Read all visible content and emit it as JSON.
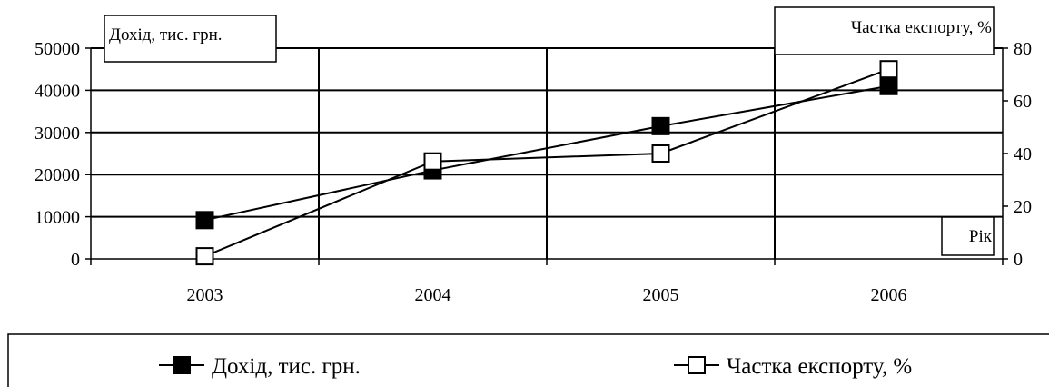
{
  "chart_data": {
    "type": "line",
    "categories": [
      "2003",
      "2004",
      "2005",
      "2006"
    ],
    "x_title": "Рік",
    "y_left": {
      "label": "Дохід, тис. грн.",
      "ylim": [
        0,
        50000
      ],
      "ticks": [
        "0",
        "10000",
        "20000",
        "30000",
        "40000",
        "50000"
      ]
    },
    "y_right": {
      "label": "Частка експорту, %",
      "ylim": [
        0,
        80
      ],
      "ticks": [
        "0",
        "20",
        "40",
        "60",
        "80"
      ]
    },
    "grid": true,
    "legend_position": "bottom",
    "series": [
      {
        "name": "Дохід, тис. грн.",
        "axis": "left",
        "marker": "filled-square",
        "values": [
          9200,
          21000,
          31500,
          41000
        ]
      },
      {
        "name": "Частка експорту, %",
        "axis": "right",
        "marker": "open-square",
        "values": [
          1,
          37,
          40,
          72
        ]
      }
    ]
  }
}
